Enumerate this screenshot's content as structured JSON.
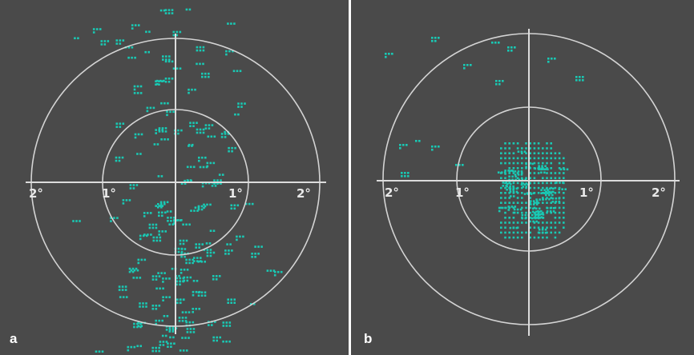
{
  "panels": [
    {
      "id": "a",
      "label": "a",
      "tick_labels": [
        "2°",
        "1°",
        "1°",
        "2°"
      ],
      "fixation_pattern": "scattered"
    },
    {
      "id": "b",
      "label": "b",
      "tick_labels": [
        "2°",
        "1°",
        "1°",
        "2°"
      ],
      "fixation_pattern": "central cluster"
    }
  ],
  "colors": {
    "background": "#4a4a4a",
    "grid": "#d4d4d4",
    "fixation_points": "#19c9b4",
    "label": "#ffffff"
  }
}
